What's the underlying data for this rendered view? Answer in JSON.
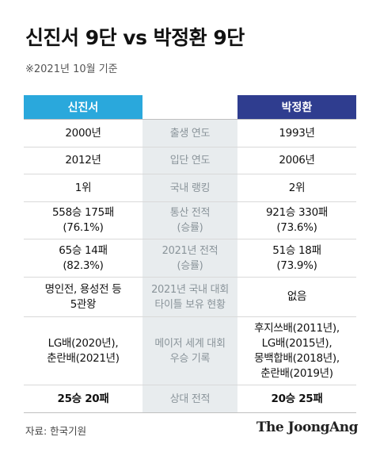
{
  "title": "신진서 9단 vs 박정환 9단",
  "subtitle": "※2021년 10월 기준",
  "headers": {
    "left": "신진서",
    "right": "박정환"
  },
  "rows": [
    {
      "label": "출생 연도",
      "left": "2000년",
      "right": "1993년"
    },
    {
      "label": "입단 연도",
      "left": "2012년",
      "right": "2006년"
    },
    {
      "label": "국내 랭킹",
      "left": "1위",
      "right": "2위"
    },
    {
      "label": "통산 전적\n(승률)",
      "left": "558승 175패\n(76.1%)",
      "right": "921승 330패\n(73.6%)"
    },
    {
      "label": "2021년 전적\n(승률)",
      "left": "65승 14패\n(82.3%)",
      "right": "51승 18패\n(73.9%)"
    },
    {
      "label": "2021년 국내 대회\n타이틀 보유 현황",
      "left": "명인전, 용성전 등\n5관왕",
      "right": "없음"
    },
    {
      "label": "메이저 세계 대회\n우승 기록",
      "left": "LG배(2020년),\n춘란배(2021년)",
      "right": "후지쓰배(2011년),\nLG배(2015년),\n몽백합배(2018년),\n춘란배(2019년)"
    },
    {
      "label": "상대 전적",
      "left": "25승 20패",
      "right": "20승 25패"
    }
  ],
  "source": "자료: 한국기원",
  "logo": "The JoongAng"
}
